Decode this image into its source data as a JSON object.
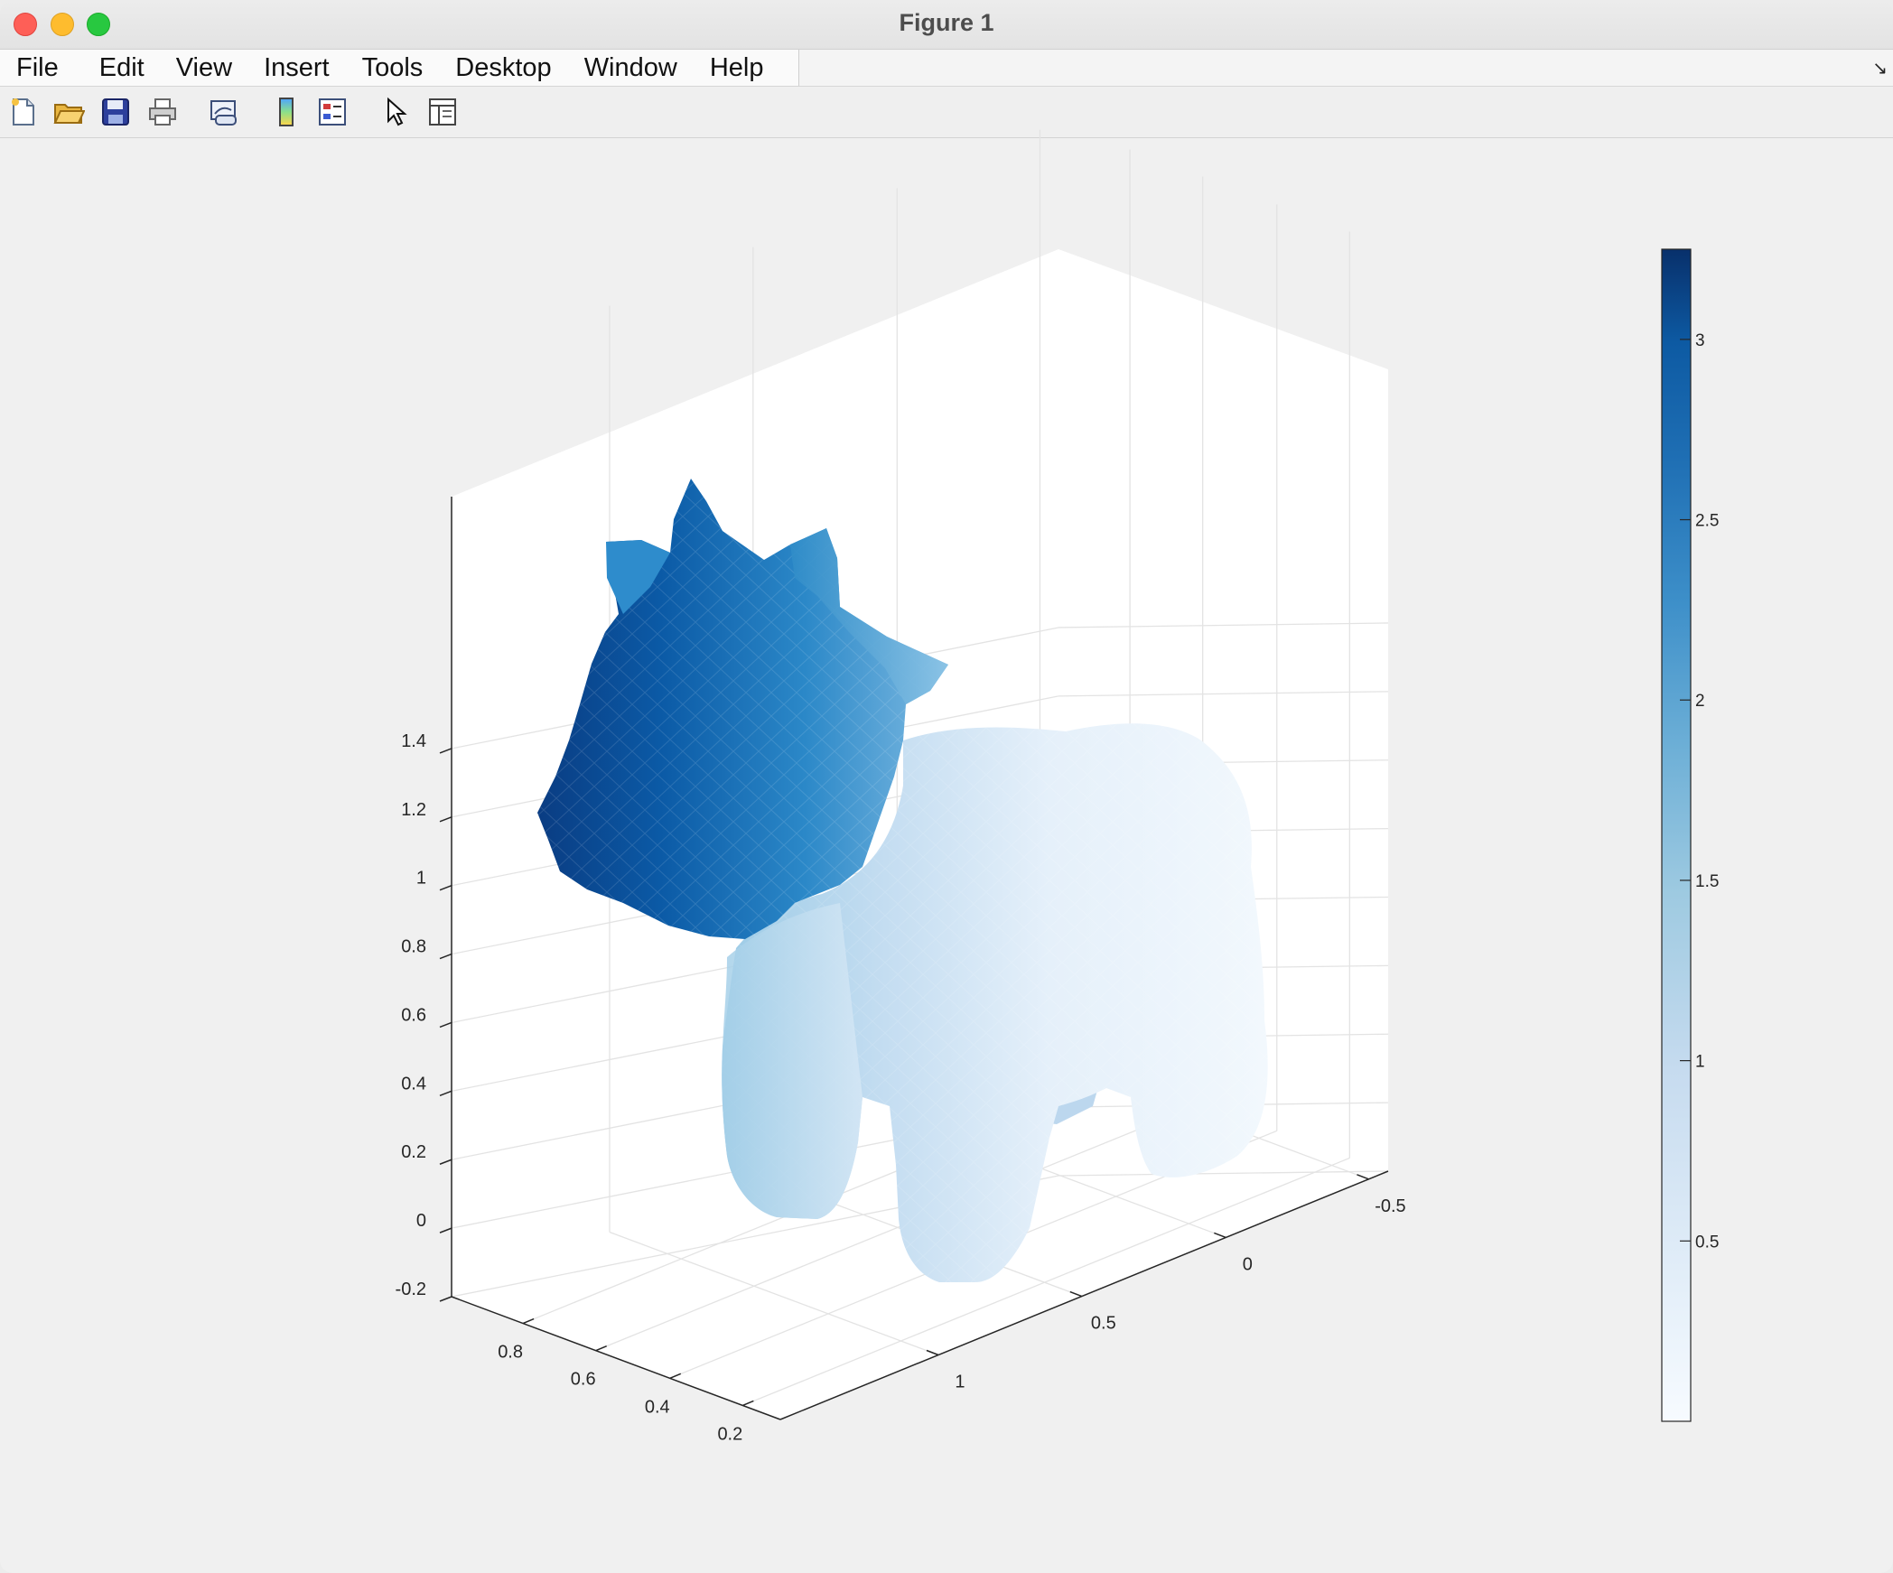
{
  "window": {
    "title": "Figure 1"
  },
  "menu": [
    "File",
    "Edit",
    "View",
    "Insert",
    "Tools",
    "Desktop",
    "Window",
    "Help"
  ],
  "toolbar_icons": [
    "new-figure-icon",
    "open-file-icon",
    "save-icon",
    "print-icon",
    "link-plot-icon",
    "insert-colorbar-icon",
    "insert-legend-icon",
    "edit-plot-arrow-icon",
    "property-inspector-icon"
  ],
  "colors": {
    "colormap_dark": "#08306b",
    "colormap_mid": "#2171b5",
    "colormap_light": "#f7fbff",
    "axes_bg": "#ffffff",
    "figure_bg": "#f0f0f0"
  },
  "chart_data": {
    "type": "surface-3d",
    "grid": true,
    "z_ticks": [
      "-0.2",
      "0",
      "0.2",
      "0.4",
      "0.6",
      "0.8",
      "1",
      "1.2",
      "1.4"
    ],
    "y_ticks": [
      "0.8",
      "0.6",
      "0.4",
      "0.2"
    ],
    "x_ticks": [
      "-0.5",
      "0",
      "0.5",
      "1"
    ],
    "colorbar": {
      "colormap": "Blues",
      "ticks": [
        "0.5",
        "1",
        "1.5",
        "2",
        "2.5",
        "3"
      ],
      "range": [
        0,
        3.25
      ]
    }
  }
}
